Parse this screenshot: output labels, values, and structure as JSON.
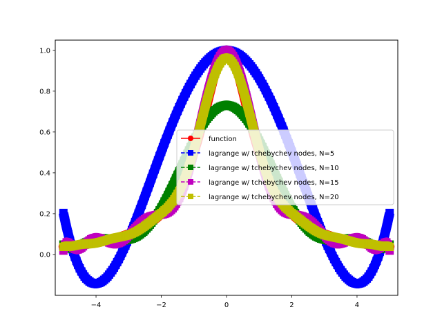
{
  "chart_data": {
    "type": "line",
    "title": "",
    "xlabel": "",
    "ylabel": "",
    "xlim": [
      -5.25,
      5.25
    ],
    "ylim": [
      -0.2,
      1.05
    ],
    "xticks": [
      -4,
      -2,
      0,
      2,
      4
    ],
    "xtick_labels": [
      "−4",
      "−2",
      "0",
      "2",
      "4"
    ],
    "yticks": [
      0.0,
      0.2,
      0.4,
      0.6,
      0.8,
      1.0
    ],
    "ytick_labels": [
      "0.0",
      "0.2",
      "0.4",
      "0.6",
      "0.8",
      "1.0"
    ],
    "grid": false,
    "legend_position": "center-right",
    "function": "1/(1+x^2)",
    "x_range": [
      -5,
      5
    ],
    "series": [
      {
        "name": "function",
        "color": "#ff0000",
        "marker": "circle",
        "linestyle": "solid",
        "nodes": 0
      },
      {
        "name": "lagrange w/ tchebychev nodes, N=5",
        "color": "#0000ff",
        "marker": "square",
        "linestyle": "dashed",
        "nodes": 5
      },
      {
        "name": "lagrange w/ tchebychev nodes, N=10",
        "color": "#008000",
        "marker": "square",
        "linestyle": "dashed",
        "nodes": 10
      },
      {
        "name": "lagrange w/ tchebychev nodes, N=15",
        "color": "#bf00bf",
        "marker": "square",
        "linestyle": "dashed",
        "nodes": 15
      },
      {
        "name": "lagrange w/ tchebychev nodes, N=20",
        "color": "#bfbf00",
        "marker": "square",
        "linestyle": "dashed",
        "nodes": 20
      }
    ]
  }
}
